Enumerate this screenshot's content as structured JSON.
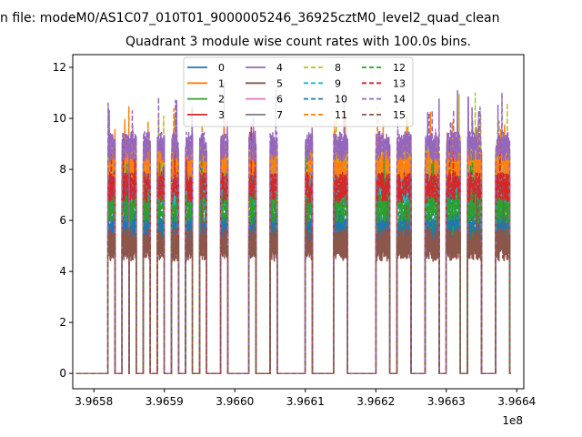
{
  "suptitle": "n file: modeM0/AS1C07_010T01_9000005246_36925cztM0_level2_quad_clean",
  "title": "Quadrant 3 module wise count rates with 100.0s bins.",
  "x_offset_label": "1e8",
  "chart_data": {
    "type": "line",
    "title": "Quadrant 3 module wise count rates with 100.0s bins.",
    "xlabel": "",
    "ylabel": "",
    "x_scale_note": "x values in units of 1e8 s",
    "xlim": [
      3.96577,
      3.96641
    ],
    "ylim": [
      -0.6,
      12.5
    ],
    "x_ticks": [
      3.9658,
      3.9659,
      3.966,
      3.9661,
      3.9662,
      3.9663,
      3.9664
    ],
    "x_tick_labels": [
      "3.9658",
      "3.9659",
      "3.9660",
      "3.9661",
      "3.9662",
      "3.9663",
      "3.9664"
    ],
    "y_ticks": [
      0,
      2,
      4,
      6,
      8,
      10,
      12
    ],
    "y_tick_labels": [
      "0",
      "2",
      "4",
      "6",
      "8",
      "10",
      "12"
    ],
    "grid": false,
    "legend_position": "top-center",
    "legend_columns": 4,
    "on_segments": [
      [
        3.96582,
        3.96583
      ],
      [
        3.96584,
        3.96585
      ],
      [
        3.96585,
        3.96586
      ],
      [
        3.96587,
        3.96588
      ],
      [
        3.96589,
        3.9659
      ],
      [
        3.96591,
        3.96592
      ],
      [
        3.96593,
        3.96594
      ],
      [
        3.96595,
        3.96596
      ],
      [
        3.96598,
        3.96599
      ],
      [
        3.96602,
        3.96603
      ],
      [
        3.96605,
        3.96606
      ],
      [
        3.9661,
        3.96611
      ],
      [
        3.96614,
        3.96616
      ],
      [
        3.9662,
        3.96622
      ],
      [
        3.96623,
        3.96625
      ],
      [
        3.96627,
        3.96629
      ],
      [
        3.9663,
        3.96632
      ],
      [
        3.96633,
        3.96635
      ],
      [
        3.96637,
        3.96639
      ]
    ],
    "series": [
      {
        "name": "0",
        "color": "#1f77b4",
        "dash": "solid",
        "level": 5.3
      },
      {
        "name": "1",
        "color": "#ff7f0e",
        "dash": "solid",
        "level": 8.0
      },
      {
        "name": "2",
        "color": "#2ca02c",
        "dash": "solid",
        "level": 5.6
      },
      {
        "name": "3",
        "color": "#d62728",
        "dash": "solid",
        "level": 7.0
      },
      {
        "name": "4",
        "color": "#9467bd",
        "dash": "solid",
        "level": 8.7
      },
      {
        "name": "5",
        "color": "#8c564b",
        "dash": "solid",
        "level": 5.0
      },
      {
        "name": "6",
        "color": "#e377c2",
        "dash": "solid",
        "level": 7.8
      },
      {
        "name": "7",
        "color": "#7f7f7f",
        "dash": "solid",
        "level": 7.5
      },
      {
        "name": "8",
        "color": "#bcbd22",
        "dash": "dashed",
        "level": 8.4
      },
      {
        "name": "9",
        "color": "#17becf",
        "dash": "dashed",
        "level": 6.9
      },
      {
        "name": "10",
        "color": "#1f77b4",
        "dash": "dashed",
        "level": 5.8
      },
      {
        "name": "11",
        "color": "#ff7f0e",
        "dash": "dashed",
        "level": 8.2
      },
      {
        "name": "12",
        "color": "#2ca02c",
        "dash": "dashed",
        "level": 6.5
      },
      {
        "name": "13",
        "color": "#d62728",
        "dash": "dashed",
        "level": 7.3
      },
      {
        "name": "14",
        "color": "#9467bd",
        "dash": "dashed",
        "level": 8.9
      },
      {
        "name": "15",
        "color": "#8c564b",
        "dash": "dashed",
        "level": 5.1
      }
    ]
  }
}
